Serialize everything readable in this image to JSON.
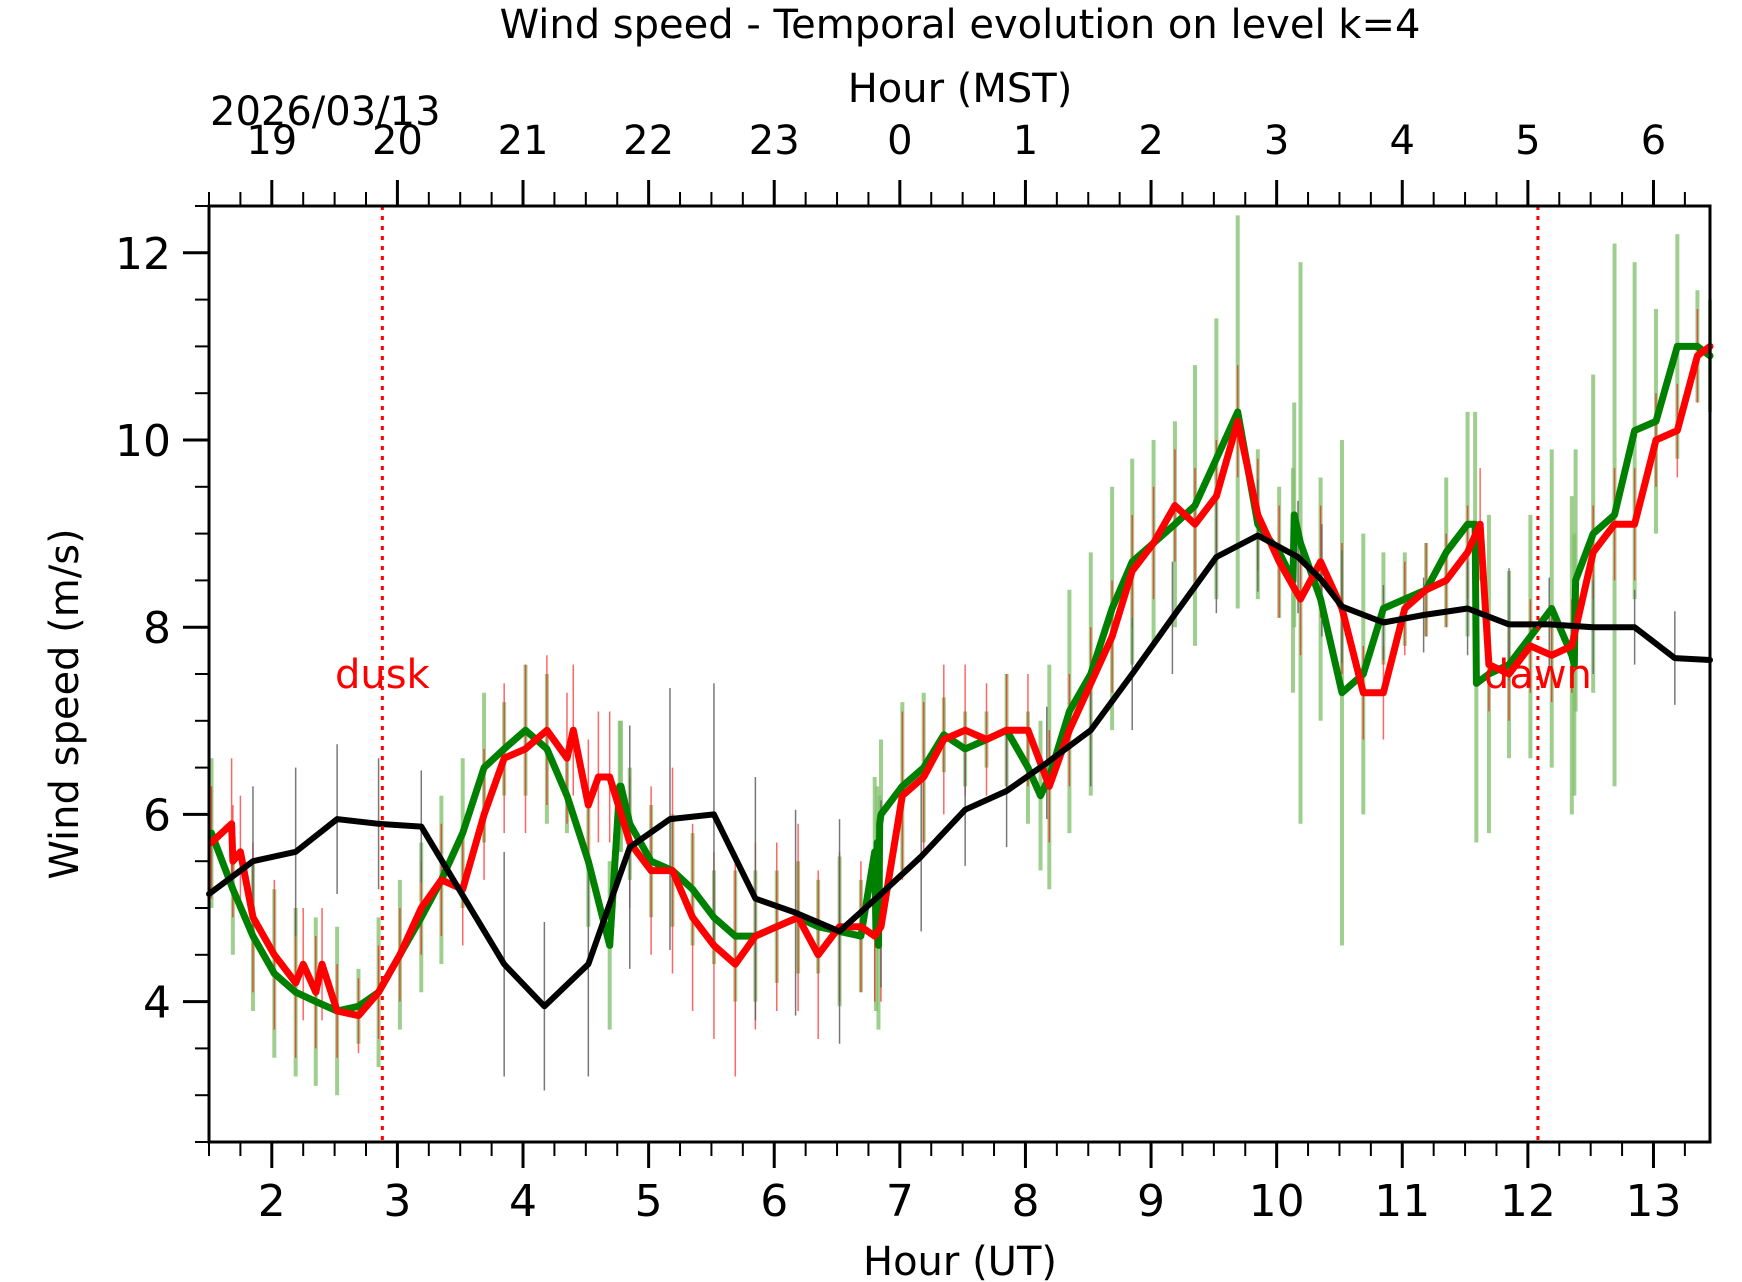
{
  "chart_data": {
    "type": "line",
    "title": "Wind speed - Temporal evolution on level k=4",
    "xlabel": "Hour (UT)",
    "x2label": "Hour (MST)",
    "ylabel": "Wind speed (m/s)",
    "date_label": "2026/03/13",
    "xlim": [
      1.5,
      13.45
    ],
    "ylim": [
      2.5,
      12.5
    ],
    "x_ticks": [
      2,
      3,
      4,
      5,
      6,
      7,
      8,
      9,
      10,
      11,
      12,
      13
    ],
    "y_ticks": [
      4,
      6,
      8,
      10,
      12
    ],
    "mst_ticks": [
      "19",
      "20",
      "21",
      "22",
      "23",
      "0",
      "1",
      "2",
      "3",
      "4",
      "5",
      "6"
    ],
    "grid": false,
    "markers": [
      {
        "label": "dusk",
        "x": 2.88,
        "color": "#ff0000"
      },
      {
        "label": "dawn",
        "x": 12.08,
        "color": "#ff0000"
      }
    ],
    "series": [
      {
        "color": "#008000",
        "x": [
          1.52,
          1.69,
          1.85,
          2.02,
          2.19,
          2.35,
          2.52,
          2.69,
          2.85,
          3.02,
          3.19,
          3.35,
          3.52,
          3.69,
          3.85,
          4.02,
          4.19,
          4.35,
          4.52,
          4.69,
          4.77,
          4.78,
          4.85,
          5.02,
          5.19,
          5.35,
          5.52,
          5.69,
          5.85,
          6.02,
          6.19,
          6.35,
          6.52,
          6.69,
          6.8,
          6.81,
          6.82,
          6.83,
          6.84,
          6.85,
          7.02,
          7.19,
          7.35,
          7.52,
          7.69,
          7.85,
          8.02,
          8.12,
          8.19,
          8.35,
          8.52,
          8.69,
          8.85,
          9.02,
          9.19,
          9.35,
          9.52,
          9.69,
          9.85,
          10.02,
          10.13,
          10.14,
          10.19,
          10.35,
          10.52,
          10.69,
          10.85,
          11.02,
          11.19,
          11.35,
          11.52,
          11.58,
          11.59,
          11.69,
          11.85,
          12.02,
          12.19,
          12.35,
          12.37,
          12.38,
          12.52,
          12.69,
          12.85,
          13.02,
          13.19,
          13.35,
          13.45
        ],
        "y": [
          5.8,
          5.2,
          4.7,
          4.3,
          4.1,
          4.0,
          3.9,
          3.95,
          4.1,
          4.5,
          4.9,
          5.3,
          5.8,
          6.5,
          6.7,
          6.9,
          6.7,
          6.2,
          5.5,
          4.6,
          6.3,
          6.3,
          5.9,
          5.5,
          5.4,
          5.2,
          4.9,
          4.7,
          4.7,
          4.8,
          4.9,
          4.8,
          4.75,
          4.7,
          5.6,
          4.7,
          5.7,
          4.6,
          5.9,
          6.0,
          6.3,
          6.5,
          6.85,
          6.7,
          6.8,
          6.9,
          6.5,
          6.2,
          6.4,
          7.1,
          7.5,
          8.2,
          8.7,
          8.9,
          9.1,
          9.3,
          9.8,
          10.3,
          9.1,
          8.8,
          8.5,
          9.2,
          8.9,
          8.3,
          7.3,
          7.5,
          8.2,
          8.3,
          8.4,
          8.8,
          9.1,
          9.1,
          7.4,
          7.5,
          7.6,
          7.9,
          8.2,
          7.7,
          7.6,
          8.5,
          9.0,
          9.2,
          10.1,
          10.2,
          11.0,
          11.0,
          10.9
        ],
        "err": [
          0.8,
          0.7,
          0.8,
          0.9,
          0.9,
          0.9,
          0.9,
          0.4,
          0.8,
          0.8,
          0.8,
          0.9,
          0.8,
          0.8,
          0.5,
          0.7,
          0.8,
          0.4,
          0.7,
          0.9,
          0.7,
          0.7,
          0.6,
          0.6,
          0.6,
          0.6,
          0.5,
          0.7,
          0.7,
          0.6,
          0.6,
          0.5,
          0.8,
          0.6,
          0.8,
          0.8,
          0.6,
          0.9,
          0.3,
          0.8,
          0.9,
          0.8,
          0.4,
          0.4,
          0.3,
          0.6,
          0.6,
          0.8,
          1.2,
          1.3,
          1.3,
          1.3,
          1.1,
          1.1,
          1.1,
          1.5,
          1.5,
          2.1,
          0.8,
          0.7,
          1.2,
          1.2,
          3.0,
          1.3,
          2.7,
          1.5,
          0.6,
          0.5,
          0.5,
          0.8,
          1.2,
          1.2,
          1.7,
          1.7,
          1.0,
          1.3,
          1.7,
          1.7,
          1.4,
          1.4,
          1.7,
          2.9,
          1.8,
          1.2,
          1.2,
          0.6,
          0.6
        ]
      },
      {
        "color": "#ff0000",
        "x": [
          1.52,
          1.68,
          1.69,
          1.75,
          1.85,
          2.02,
          2.19,
          2.25,
          2.35,
          2.4,
          2.52,
          2.69,
          2.85,
          3.02,
          3.19,
          3.35,
          3.52,
          3.69,
          3.85,
          4.02,
          4.19,
          4.35,
          4.4,
          4.52,
          4.6,
          4.69,
          4.85,
          5.02,
          5.19,
          5.35,
          5.52,
          5.69,
          5.85,
          6.02,
          6.19,
          6.35,
          6.52,
          6.69,
          6.8,
          6.85,
          7.02,
          7.19,
          7.35,
          7.52,
          7.69,
          7.85,
          8.02,
          8.19,
          8.35,
          8.52,
          8.69,
          8.85,
          9.02,
          9.19,
          9.35,
          9.52,
          9.69,
          9.85,
          10.02,
          10.19,
          10.35,
          10.52,
          10.69,
          10.85,
          11.02,
          11.19,
          11.35,
          11.52,
          11.62,
          11.69,
          11.85,
          12.02,
          12.19,
          12.35,
          12.52,
          12.69,
          12.85,
          13.02,
          13.19,
          13.35,
          13.45
        ],
        "y": [
          5.7,
          5.9,
          5.5,
          5.6,
          4.9,
          4.5,
          4.2,
          4.4,
          4.1,
          4.4,
          3.9,
          3.85,
          4.1,
          4.5,
          5.0,
          5.3,
          5.2,
          6.0,
          6.6,
          6.7,
          6.9,
          6.6,
          6.9,
          6.1,
          6.4,
          6.4,
          5.7,
          5.4,
          5.4,
          4.9,
          4.6,
          4.4,
          4.7,
          4.8,
          4.9,
          4.5,
          4.8,
          4.8,
          4.7,
          4.8,
          6.2,
          6.4,
          6.8,
          6.9,
          6.8,
          6.9,
          6.9,
          6.3,
          6.9,
          7.4,
          7.9,
          8.6,
          8.9,
          9.3,
          9.1,
          9.4,
          10.2,
          9.2,
          8.7,
          8.3,
          8.7,
          8.2,
          7.3,
          7.3,
          8.2,
          8.4,
          8.5,
          8.8,
          9.1,
          7.6,
          7.5,
          7.8,
          7.7,
          7.8,
          8.8,
          9.1,
          9.1,
          10.0,
          10.1,
          10.9,
          11.0
        ],
        "err": [
          0.6,
          0.7,
          0.6,
          0.6,
          0.8,
          0.8,
          0.8,
          0.6,
          0.6,
          0.6,
          0.5,
          0.4,
          0.5,
          0.5,
          0.5,
          0.6,
          0.6,
          0.7,
          0.8,
          0.9,
          0.8,
          0.7,
          0.7,
          0.7,
          0.7,
          0.7,
          0.7,
          0.9,
          1.1,
          1.0,
          1.0,
          1.2,
          1.0,
          0.9,
          1.0,
          0.9,
          0.8,
          0.7,
          0.7,
          0.8,
          0.9,
          0.8,
          0.8,
          0.7,
          0.6,
          0.6,
          0.6,
          0.6,
          0.6,
          0.6,
          0.6,
          0.6,
          0.6,
          0.6,
          0.6,
          0.6,
          0.6,
          0.6,
          0.6,
          0.6,
          0.6,
          0.7,
          0.5,
          0.5,
          0.5,
          0.5,
          0.5,
          0.5,
          0.6,
          0.5,
          0.5,
          0.5,
          0.5,
          0.5,
          0.5,
          0.6,
          0.6,
          0.5,
          0.5,
          0.5,
          0.5
        ]
      },
      {
        "color": "#000000",
        "x": [
          1.5,
          1.85,
          2.19,
          2.52,
          2.85,
          3.19,
          3.85,
          4.17,
          4.52,
          4.85,
          5.17,
          5.52,
          5.85,
          6.17,
          6.52,
          6.85,
          7.17,
          7.52,
          7.85,
          8.17,
          8.52,
          8.85,
          9.17,
          9.52,
          9.85,
          10.17,
          10.36,
          10.52,
          10.85,
          11.17,
          11.52,
          11.85,
          12.17,
          12.52,
          12.85,
          13.17,
          13.45
        ],
        "y": [
          5.15,
          5.5,
          5.6,
          5.95,
          5.9,
          5.87,
          4.4,
          3.95,
          4.4,
          5.65,
          5.95,
          6.0,
          5.1,
          4.95,
          4.75,
          5.15,
          5.55,
          6.05,
          6.25,
          6.55,
          6.9,
          7.5,
          8.1,
          8.75,
          8.98,
          8.75,
          8.5,
          8.22,
          8.05,
          8.13,
          8.2,
          8.03,
          8.03,
          8.0,
          8.0,
          7.67,
          7.65
        ],
        "err": [
          0,
          0.8,
          0.9,
          0.8,
          0.7,
          0.6,
          1.2,
          0.9,
          1.2,
          1.3,
          1.4,
          1.4,
          1.3,
          1.1,
          1.2,
          1.0,
          0.8,
          0.6,
          0.6,
          0.6,
          0.6,
          0.6,
          0.6,
          0.6,
          0.6,
          0.6,
          0.6,
          0.6,
          0.4,
          0.4,
          0.5,
          0.6,
          0.5,
          0.5,
          0.4,
          0.5,
          0.5
        ]
      }
    ]
  }
}
